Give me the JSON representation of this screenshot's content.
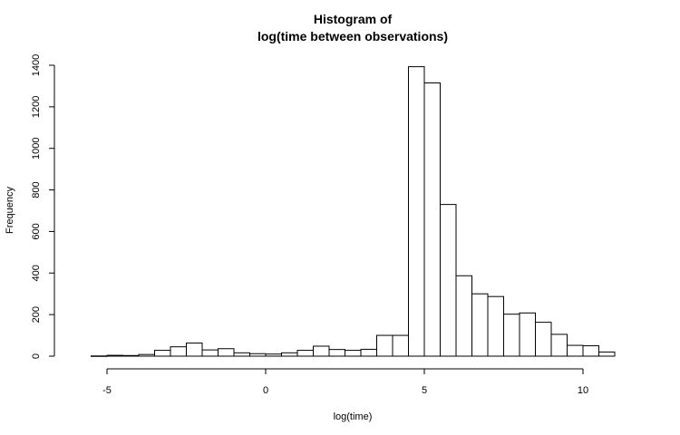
{
  "chart_data": {
    "type": "bar",
    "title": "Histogram of",
    "subtitle": "log(time between observations)",
    "xlabel": "log(time)",
    "ylabel": "Frequency",
    "xlim": [
      -6,
      11.5
    ],
    "ylim": [
      0,
      1400
    ],
    "xticks": [
      -5,
      0,
      5,
      10
    ],
    "yticks": [
      0,
      200,
      400,
      600,
      800,
      1000,
      1200,
      1400
    ],
    "bin_width": 0.5,
    "bins_start": -5.5,
    "values": [
      1,
      4,
      3,
      8,
      28,
      45,
      63,
      30,
      36,
      16,
      12,
      10,
      16,
      28,
      48,
      32,
      28,
      33,
      100,
      100,
      1393,
      1315,
      730,
      387,
      300,
      287,
      202,
      208,
      163,
      105,
      52,
      50,
      20
    ],
    "grid": false,
    "legend": "none"
  }
}
